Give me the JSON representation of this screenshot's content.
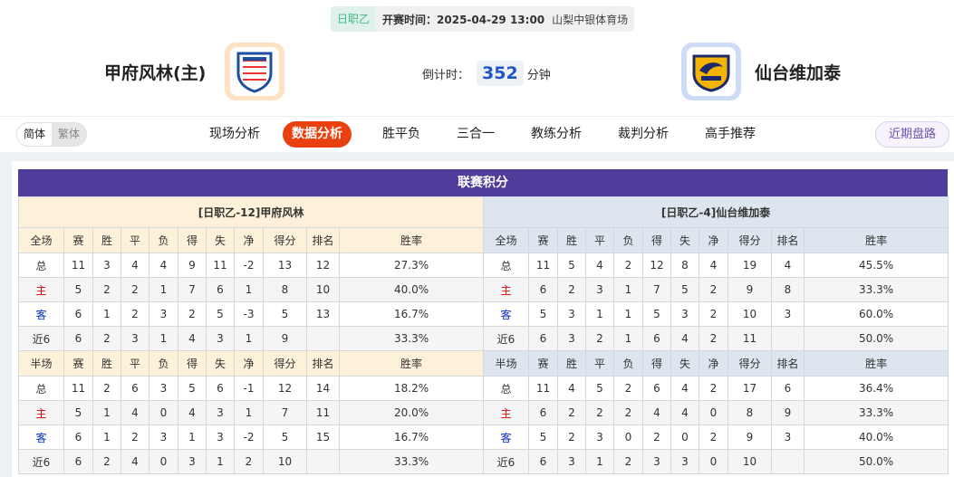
{
  "match": {
    "league": "日职乙",
    "kickoff": "开赛时间：2025-04-29 13:00",
    "venue": "山梨中银体育场",
    "home": "甲府风林(主)",
    "away": "仙台维加泰",
    "countdown_label": "倒计时：",
    "countdown": "352",
    "countdown_unit": "分钟"
  },
  "nav": {
    "simplified": "简体",
    "traditional": "繁体",
    "tabs": [
      "现场分析",
      "数据分析",
      "胜平负",
      "三合一",
      "教练分析",
      "裁判分析",
      "高手推荐"
    ],
    "active": "数据分析",
    "recent": "近期盘路"
  },
  "colors": {
    "accent": "#e8410f",
    "title_bg": "#503d9b",
    "home_header": "#fdf1d9",
    "away_header": "#dde6ee"
  },
  "standings": {
    "title": "联赛积分",
    "home": {
      "name": "[日职乙-12]甲府风林",
      "full": {
        "headers": [
          "全场",
          "赛",
          "胜",
          "平",
          "负",
          "得",
          "失",
          "净",
          "得分",
          "排名",
          "胜率"
        ],
        "rows": [
          [
            "总",
            "11",
            "3",
            "4",
            "4",
            "9",
            "11",
            "-2",
            "13",
            "12",
            "27.3%"
          ],
          [
            "主",
            "5",
            "2",
            "2",
            "1",
            "7",
            "6",
            "1",
            "8",
            "10",
            "40.0%"
          ],
          [
            "客",
            "6",
            "1",
            "2",
            "3",
            "2",
            "5",
            "-3",
            "5",
            "13",
            "16.7%"
          ],
          [
            "近6",
            "6",
            "2",
            "3",
            "1",
            "4",
            "3",
            "1",
            "9",
            "",
            "33.3%"
          ]
        ]
      },
      "half": {
        "headers": [
          "半场",
          "赛",
          "胜",
          "平",
          "负",
          "得",
          "失",
          "净",
          "得分",
          "排名",
          "胜率"
        ],
        "rows": [
          [
            "总",
            "11",
            "2",
            "6",
            "3",
            "5",
            "6",
            "-1",
            "12",
            "14",
            "18.2%"
          ],
          [
            "主",
            "5",
            "1",
            "4",
            "0",
            "4",
            "3",
            "1",
            "7",
            "11",
            "20.0%"
          ],
          [
            "客",
            "6",
            "1",
            "2",
            "3",
            "1",
            "3",
            "-2",
            "5",
            "15",
            "16.7%"
          ],
          [
            "近6",
            "6",
            "2",
            "4",
            "0",
            "3",
            "1",
            "2",
            "10",
            "",
            "33.3%"
          ]
        ]
      }
    },
    "away": {
      "name": "[日职乙-4]仙台维加泰",
      "full": {
        "headers": [
          "全场",
          "赛",
          "胜",
          "平",
          "负",
          "得",
          "失",
          "净",
          "得分",
          "排名",
          "胜率"
        ],
        "rows": [
          [
            "总",
            "11",
            "5",
            "4",
            "2",
            "12",
            "8",
            "4",
            "19",
            "4",
            "45.5%"
          ],
          [
            "主",
            "6",
            "2",
            "3",
            "1",
            "7",
            "5",
            "2",
            "9",
            "8",
            "33.3%"
          ],
          [
            "客",
            "5",
            "3",
            "1",
            "1",
            "5",
            "3",
            "2",
            "10",
            "3",
            "60.0%"
          ],
          [
            "近6",
            "6",
            "3",
            "2",
            "1",
            "6",
            "4",
            "2",
            "11",
            "",
            "50.0%"
          ]
        ]
      },
      "half": {
        "headers": [
          "半场",
          "赛",
          "胜",
          "平",
          "负",
          "得",
          "失",
          "净",
          "得分",
          "排名",
          "胜率"
        ],
        "rows": [
          [
            "总",
            "11",
            "4",
            "5",
            "2",
            "6",
            "4",
            "2",
            "17",
            "6",
            "36.4%"
          ],
          [
            "主",
            "6",
            "2",
            "2",
            "2",
            "4",
            "4",
            "0",
            "8",
            "9",
            "33.3%"
          ],
          [
            "客",
            "5",
            "2",
            "3",
            "0",
            "2",
            "0",
            "2",
            "9",
            "3",
            "40.0%"
          ],
          [
            "近6",
            "6",
            "3",
            "1",
            "2",
            "3",
            "3",
            "0",
            "10",
            "",
            "50.0%"
          ]
        ]
      }
    }
  }
}
